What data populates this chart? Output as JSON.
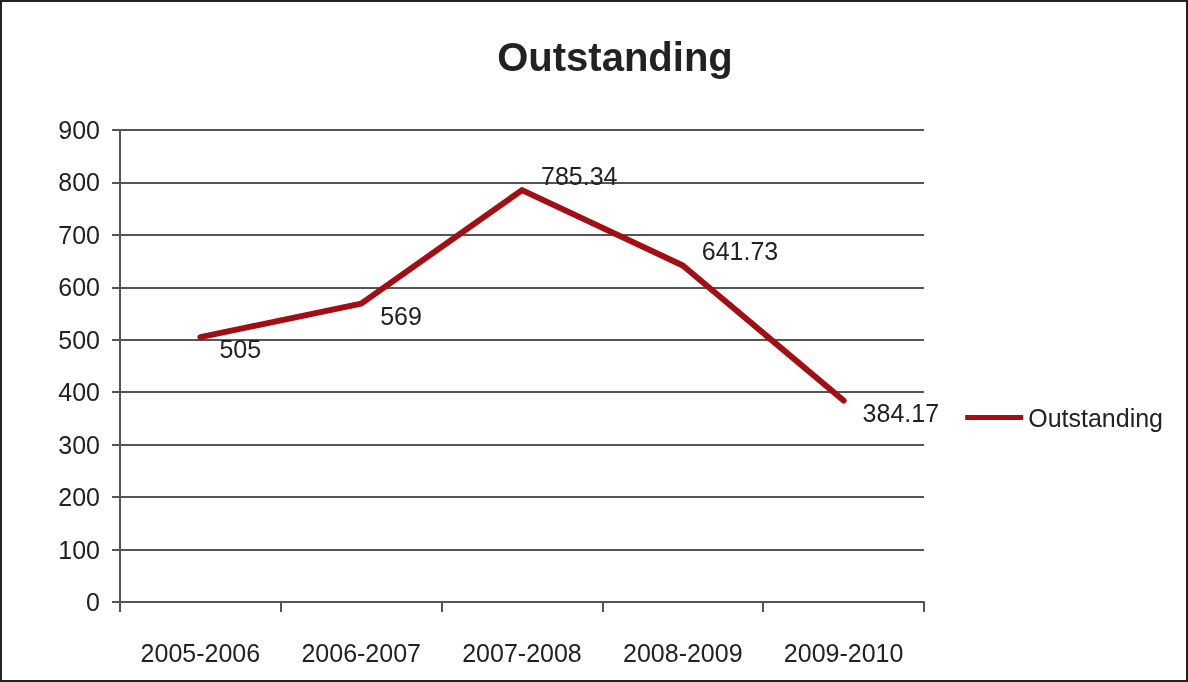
{
  "chart_data": {
    "type": "line",
    "title": "Outstanding",
    "categories": [
      "2005-2006",
      "2006-2007",
      "2007-2008",
      "2008-2009",
      "2009-2010"
    ],
    "series": [
      {
        "name": "Outstanding",
        "color": "#a20e14",
        "values": [
          505,
          569,
          785.34,
          641.73,
          384.17
        ]
      }
    ],
    "ylim": [
      0,
      900
    ],
    "yticks": [
      0,
      100,
      200,
      300,
      400,
      500,
      600,
      700,
      800,
      900
    ],
    "grid": "y",
    "legend": "right",
    "marker": "none",
    "line_style": "solid",
    "data_labels": true
  }
}
